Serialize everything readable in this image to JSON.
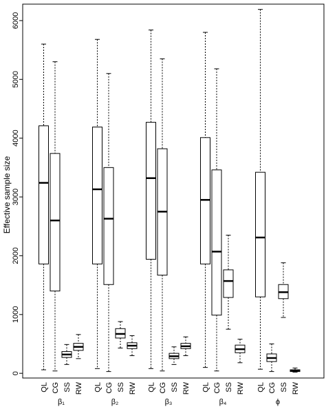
{
  "chart_data": {
    "type": "boxplot",
    "ylabel": "Effective sample size",
    "ylim": [
      -80,
      6280
    ],
    "yticks": [
      0,
      1000,
      2000,
      3000,
      4000,
      5000,
      6000
    ],
    "method_labels": [
      "QL",
      "CG",
      "SS",
      "RW"
    ],
    "groups": [
      {
        "label": "β₁",
        "boxes": [
          {
            "method": "QL",
            "min": 60,
            "q1": 1860,
            "median": 3240,
            "q3": 4210,
            "max": 5600
          },
          {
            "method": "CG",
            "min": 40,
            "q1": 1400,
            "median": 2600,
            "q3": 3740,
            "max": 5300
          },
          {
            "method": "SS",
            "min": 150,
            "q1": 270,
            "median": 320,
            "q3": 370,
            "max": 490
          },
          {
            "method": "RW",
            "min": 250,
            "q1": 390,
            "median": 450,
            "q3": 510,
            "max": 660
          }
        ]
      },
      {
        "label": "β₂",
        "boxes": [
          {
            "method": "QL",
            "min": 80,
            "q1": 1860,
            "median": 3130,
            "q3": 4190,
            "max": 5680
          },
          {
            "method": "CG",
            "min": 30,
            "q1": 1510,
            "median": 2630,
            "q3": 3500,
            "max": 5100
          },
          {
            "method": "SS",
            "min": 430,
            "q1": 600,
            "median": 670,
            "q3": 760,
            "max": 880
          },
          {
            "method": "RW",
            "min": 300,
            "q1": 420,
            "median": 470,
            "q3": 520,
            "max": 640
          }
        ]
      },
      {
        "label": "β₃",
        "boxes": [
          {
            "method": "QL",
            "min": 80,
            "q1": 1940,
            "median": 3320,
            "q3": 4270,
            "max": 5840
          },
          {
            "method": "CG",
            "min": 40,
            "q1": 1670,
            "median": 2750,
            "q3": 3820,
            "max": 5350
          },
          {
            "method": "SS",
            "min": 150,
            "q1": 250,
            "median": 290,
            "q3": 340,
            "max": 450
          },
          {
            "method": "RW",
            "min": 300,
            "q1": 420,
            "median": 460,
            "q3": 510,
            "max": 620
          }
        ]
      },
      {
        "label": "β₄",
        "boxes": [
          {
            "method": "QL",
            "min": 100,
            "q1": 1860,
            "median": 2950,
            "q3": 4010,
            "max": 5800
          },
          {
            "method": "CG",
            "min": 40,
            "q1": 990,
            "median": 2070,
            "q3": 3460,
            "max": 5180
          },
          {
            "method": "SS",
            "min": 750,
            "q1": 1290,
            "median": 1570,
            "q3": 1760,
            "max": 2350
          },
          {
            "method": "RW",
            "min": 180,
            "q1": 350,
            "median": 410,
            "q3": 480,
            "max": 580
          }
        ]
      },
      {
        "label": "ϕ",
        "boxes": [
          {
            "method": "QL",
            "min": 70,
            "q1": 1300,
            "median": 2310,
            "q3": 3420,
            "max": 6190
          },
          {
            "method": "CG",
            "min": 30,
            "q1": 200,
            "median": 260,
            "q3": 330,
            "max": 500
          },
          {
            "method": "SS",
            "min": 950,
            "q1": 1270,
            "median": 1380,
            "q3": 1510,
            "max": 1880
          },
          {
            "method": "RW",
            "min": 20,
            "q1": 30,
            "median": 45,
            "q3": 60,
            "max": 90
          }
        ]
      }
    ]
  }
}
